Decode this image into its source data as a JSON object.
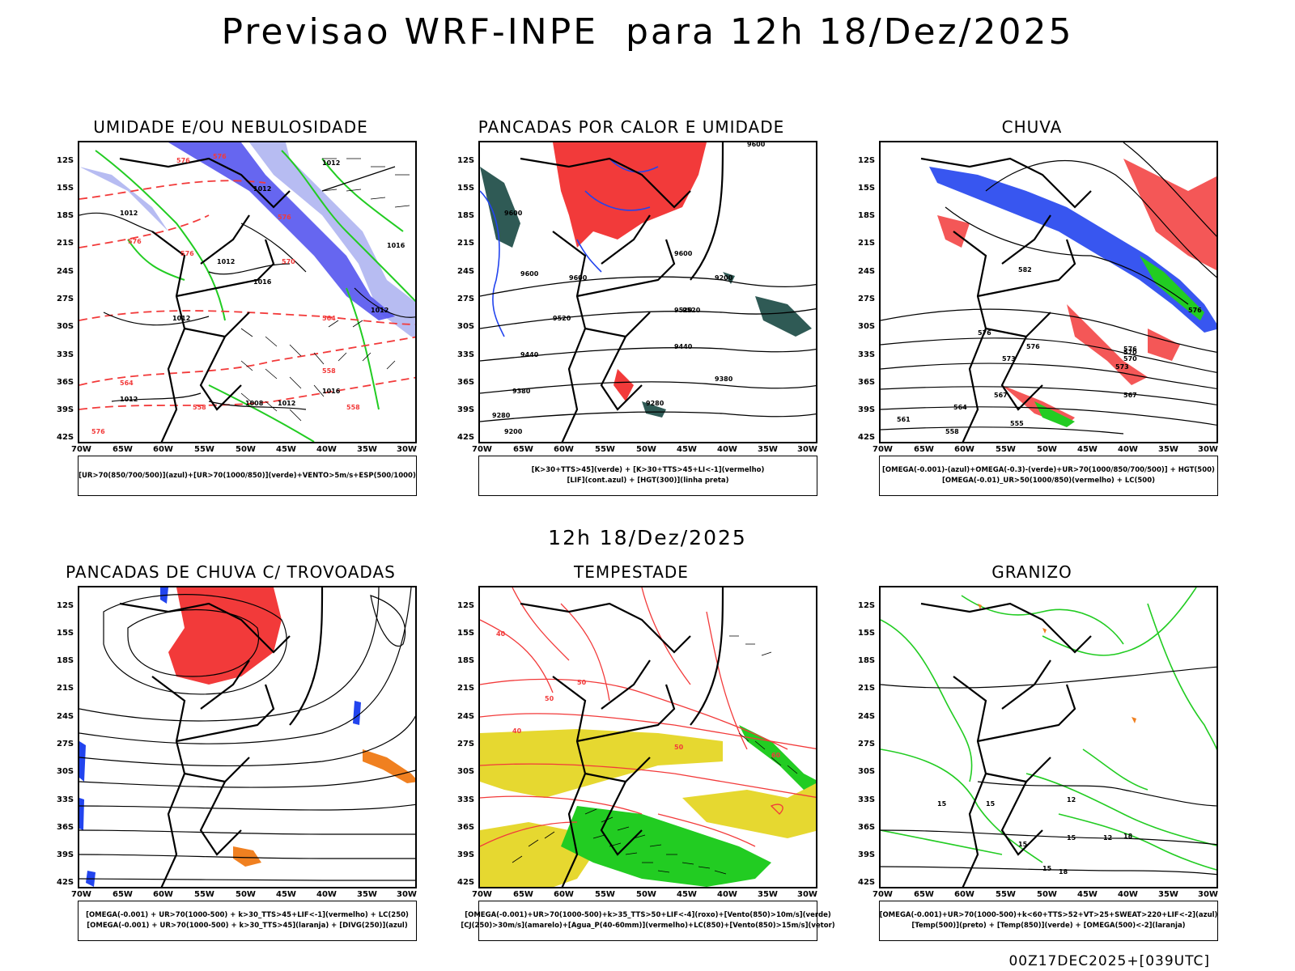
{
  "title": "Previsao WRF-INPE  para 12h 18/Dez/2025",
  "middle_title": "12h 18/Dez/2025",
  "footer": "00Z17DEC2025+[039UTC]",
  "axis": {
    "lat_labels": [
      "12S",
      "15S",
      "18S",
      "21S",
      "24S",
      "27S",
      "30S",
      "33S",
      "36S",
      "39S",
      "42S"
    ],
    "lon_labels": [
      "70W",
      "65W",
      "60W",
      "55W",
      "50W",
      "45W",
      "40W",
      "35W",
      "30W"
    ]
  },
  "colors": {
    "red": "#f23a3a",
    "green": "#22cc22",
    "blue": "#2244ee",
    "lavender": "#aab0f0",
    "purple": "#5555ee",
    "dark_teal": "#2f5a55",
    "yellow": "#e6d830",
    "orange": "#f08020"
  },
  "panels": [
    {
      "title": "UMIDADE E/OU NEBULOSIDADE",
      "legend": [
        "[UR>70(850/700/500)](azul)+[UR>70(1000/850)](verde)+VENTO>5m/s+ESP(500/1000)"
      ],
      "contour_labels": [
        "1012",
        "1012",
        "1012",
        "1012",
        "1012",
        "1016",
        "1016",
        "1012",
        "1012",
        "1008",
        "1012",
        "1016",
        "576",
        "576",
        "576",
        "576",
        "576",
        "576",
        "570",
        "564",
        "564",
        "558",
        "558",
        "558"
      ]
    },
    {
      "title": "PANCADAS POR CALOR E UMIDADE",
      "legend": [
        "[K>30+TTS>45](verde) + [K>30+TTS>45+LI<-1](vermelho)",
        "[LIF](cont.azul) + [HGT(300)](linha preta)"
      ],
      "contour_labels": [
        "9600",
        "9600",
        "9600",
        "9600",
        "9520",
        "9520",
        "9520",
        "9440",
        "9440",
        "9380",
        "9380",
        "9280",
        "9280",
        "9200",
        "9200",
        "9600"
      ]
    },
    {
      "title": "CHUVA",
      "legend": [
        "[OMEGA(-0.001)-(azul)+OMEGA(-0.3)-(verde)+UR>70(1000/850/700/500)] + HGT(500)",
        "[OMEGA(-0.01)_UR>50(1000/850)(vermelho) + LC(500)"
      ],
      "contour_labels": [
        "582",
        "576",
        "576",
        "576",
        "573",
        "570",
        "570",
        "567",
        "567",
        "564",
        "561",
        "558",
        "555",
        "573",
        "576"
      ]
    },
    {
      "title": "PANCADAS DE CHUVA C/ TROVOADAS",
      "legend": [
        "[OMEGA(-0.001) + UR>70(1000-500) + k>30_TTS>45+LIF<-1](vermelho) + LC(250)",
        "[OMEGA(-0.001) + UR>70(1000-500) + k>30_TTS>45](laranja) + [DIVG(250)](azul)"
      ],
      "contour_labels": []
    },
    {
      "title": "TEMPESTADE",
      "legend": [
        "[OMEGA(-0.001)+UR>70(1000-500)+k>35_TTS>50+LIF<-4](roxo)+[Vento(850)>10m/s](verde)",
        "[CJ(250)>30m/s](amarelo)+[Agua_P(40-60mm)](vermelho)+LC(850)+[Vento(850)>15m/s](vetor)"
      ],
      "contour_labels": [
        "40",
        "50",
        "50",
        "40",
        "50",
        "60"
      ]
    },
    {
      "title": "GRANIZO",
      "legend": [
        "[OMEGA(-0.001)+UR>70(1000-500)+k<60+TTS>52+VT>25+SWEAT>220+LIF<-2](azul)",
        "[Temp(500)](preto) + [Temp(850)](verde) + [OMEGA(500)<-2](laranja)"
      ],
      "contour_labels": [
        "15",
        "15",
        "12",
        "15",
        "15",
        "12",
        "18",
        "15",
        "18"
      ]
    }
  ]
}
